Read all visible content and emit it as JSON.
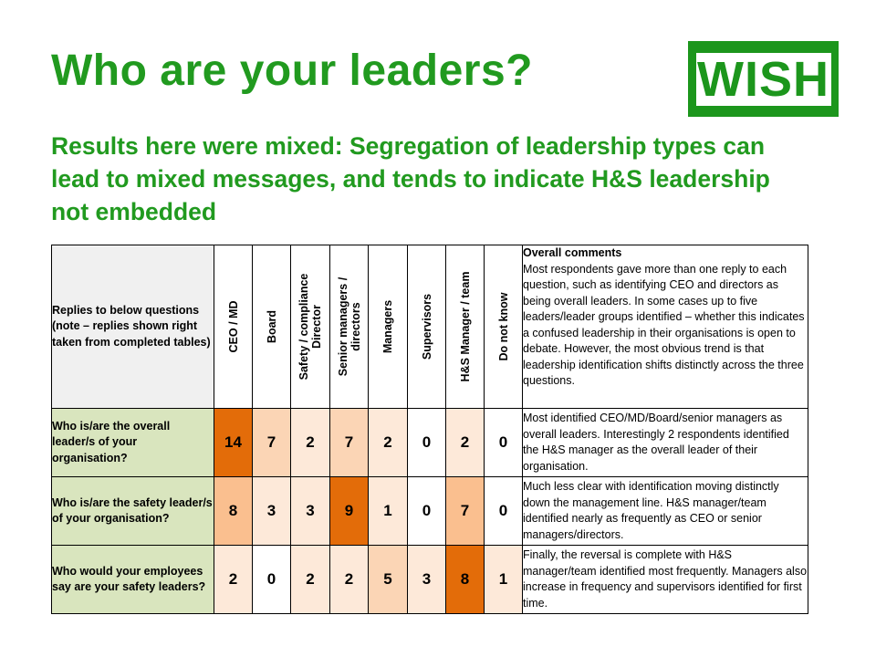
{
  "title": "Who are your leaders?",
  "logo_text": "WISH",
  "subtitle": "Results here were mixed: Segregation of leadership types can lead to mixed messages, and tends to indicate H&S leadership not embedded",
  "table": {
    "corner_header": "Replies to below questions\n(note – replies shown right taken from completed tables)",
    "columns": [
      "CEO / MD",
      "Board",
      "Safety / compliance\nDirector",
      "Senior managers /\ndirectors",
      "Managers",
      "Supervisors",
      "H&S Manager / team",
      "Do not know"
    ],
    "comments_header": {
      "title": "Overall comments",
      "text": "Most respondents gave more than one reply to each question, such as identifying CEO and directors as being overall leaders. In some cases up to five leaders/leader groups identified – whether this indicates a confused leadership in their organisations is open to debate. However, the most obvious trend is that leadership identification shifts distinctly across the three questions."
    },
    "rows": [
      {
        "question": "Who is/are the overall leader/s of your organisation?",
        "values": [
          "14",
          "7",
          "2",
          "7",
          "2",
          "0",
          "2",
          "0"
        ],
        "colors": [
          "#e36c09",
          "#fbd5b5",
          "#fde9d9",
          "#fbd5b5",
          "#fde9d9",
          "#ffffff",
          "#fde9d9",
          "#ffffff"
        ],
        "comment": "Most identified CEO/MD/Board/senior managers as overall leaders. Interestingly 2 respondents identified the H&S manager as the overall leader of their organisation."
      },
      {
        "question": "Who is/are the safety leader/s of your organisation?",
        "values": [
          "8",
          "3",
          "3",
          "9",
          "1",
          "0",
          "7",
          "0"
        ],
        "colors": [
          "#fabf8f",
          "#fde9d9",
          "#fde9d9",
          "#e36c09",
          "#fde9d9",
          "#ffffff",
          "#fabf8f",
          "#ffffff"
        ],
        "comment": "Much less clear with identification moving distinctly down the management line. H&S manager/team identified nearly as frequently as CEO or senior managers/directors."
      },
      {
        "question": "Who would your employees say are your safety leaders?",
        "values": [
          "2",
          "0",
          "2",
          "2",
          "5",
          "3",
          "8",
          "1"
        ],
        "colors": [
          "#fde9d9",
          "#ffffff",
          "#fde9d9",
          "#fde9d9",
          "#fbd5b5",
          "#fde9d9",
          "#e36c09",
          "#fde9d9"
        ],
        "comment": "Finally, the reversal is complete with H&S manager/team identified most frequently. Managers also increase in frequency and supervisors identified for first time."
      }
    ]
  }
}
